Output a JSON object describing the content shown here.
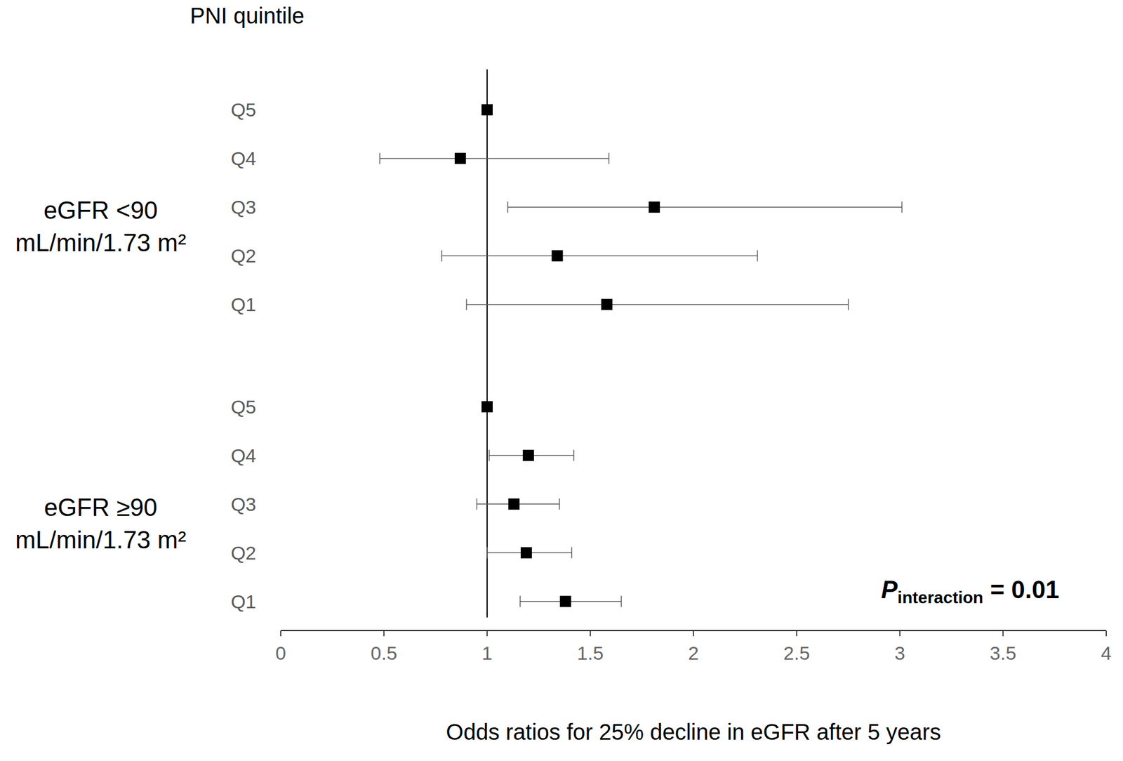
{
  "chart_data": {
    "type": "forest",
    "y_label": "PNI quintile",
    "x_label": "Odds ratios for 25% decline in eGFR after 5 years",
    "xlim": [
      0,
      4
    ],
    "xticks": [
      0,
      0.5,
      1,
      1.5,
      2,
      2.5,
      3,
      3.5,
      4
    ],
    "reference_line": 1,
    "marker": "square",
    "color": "#000000",
    "groups": [
      {
        "label": [
          "eGFR <90",
          "mL/min/1.73 m²"
        ],
        "categories": [
          "Q5",
          "Q4",
          "Q3",
          "Q2",
          "Q1"
        ],
        "values": [
          1,
          0.87,
          1.81,
          1.34,
          1.58
        ],
        "ci_low": [
          null,
          0.48,
          1.1,
          0.78,
          0.9
        ],
        "ci_high": [
          null,
          1.59,
          3.01,
          2.31,
          2.75
        ]
      },
      {
        "label": [
          "eGFR ≥90",
          "mL/min/1.73 m²"
        ],
        "categories": [
          "Q5",
          "Q4",
          "Q3",
          "Q2",
          "Q1"
        ],
        "values": [
          1,
          1.2,
          1.13,
          1.19,
          1.38
        ],
        "ci_low": [
          null,
          1.01,
          0.95,
          1.0,
          1.16
        ],
        "ci_high": [
          null,
          1.42,
          1.35,
          1.41,
          1.65
        ]
      }
    ],
    "annotation": {
      "text": "P",
      "subscript": "interaction",
      "suffix": "= 0.01"
    }
  }
}
